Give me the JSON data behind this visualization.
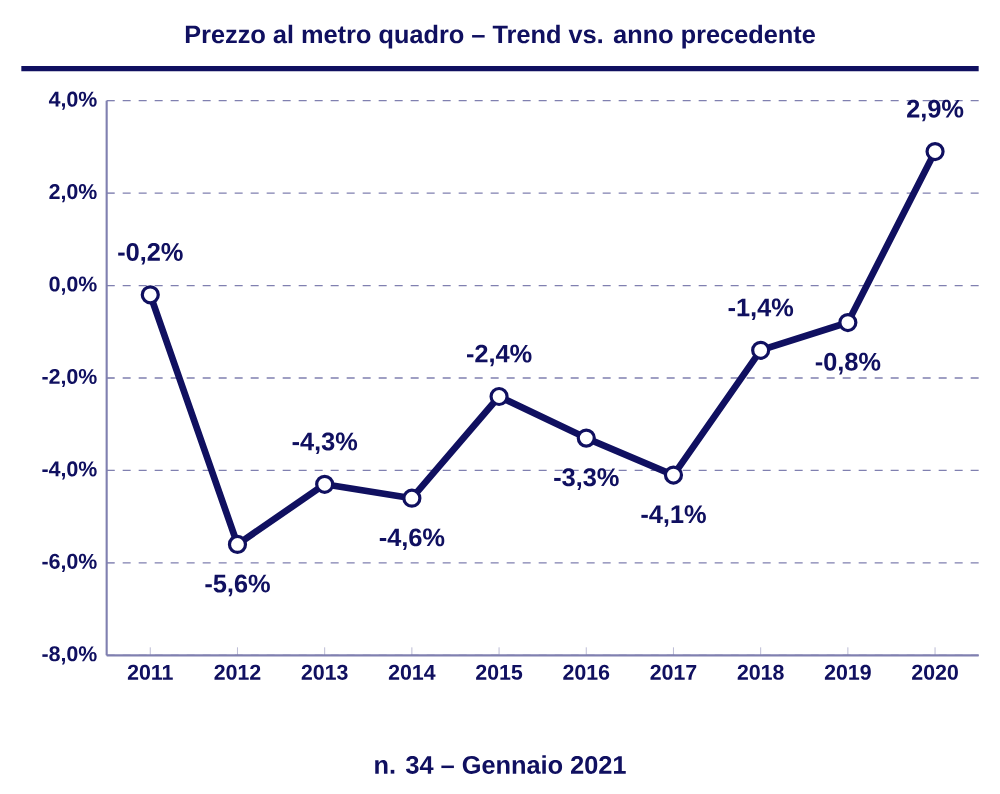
{
  "chart_data": {
    "type": "line",
    "title": "Prezzo al metro quadro – Trend vs. anno precedente",
    "categories": [
      "2011",
      "2012",
      "2013",
      "2014",
      "2015",
      "2016",
      "2017",
      "2018",
      "2019",
      "2020"
    ],
    "values": [
      -0.2,
      -5.6,
      -4.3,
      -4.6,
      -2.4,
      -3.3,
      -4.1,
      -1.4,
      -0.8,
      2.9
    ],
    "value_labels": [
      "-0,2%",
      "-5,6%",
      "-4,3%",
      "-4,6%",
      "-2,4%",
      "-3,3%",
      "-4,1%",
      "-1,4%",
      "-0,8%",
      "2,9%"
    ],
    "color": "#101060",
    "marker": "circle",
    "line_style": "solid",
    "grid": "y",
    "ylim": [
      -8,
      4
    ],
    "yticks": [
      {
        "value": -8,
        "label": "-8,0%"
      },
      {
        "value": -6,
        "label": "-6,0%"
      },
      {
        "value": -4,
        "label": "-4,0%"
      },
      {
        "value": -2,
        "label": "-2,0%"
      },
      {
        "value": 0,
        "label": "0,0%"
      },
      {
        "value": 2,
        "label": "2,0%"
      },
      {
        "value": 4,
        "label": "4,0%"
      }
    ],
    "annotations": [
      "n. 34 – Gennaio 2021"
    ]
  }
}
